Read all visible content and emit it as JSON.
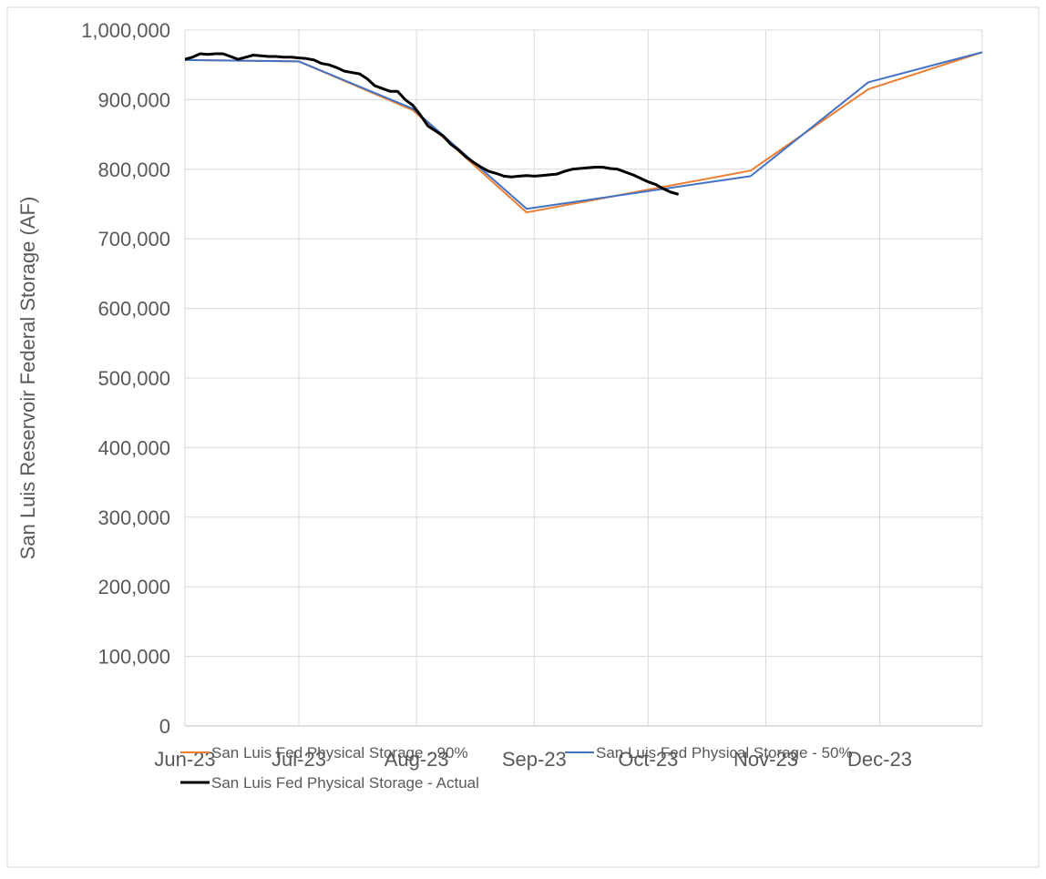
{
  "chart_data": {
    "type": "line",
    "y_label": "San Luis Reservoir Federal Storage (AF)",
    "xlim": [
      0,
      210
    ],
    "xticks": [
      {
        "value": 0,
        "label": "Jun-23"
      },
      {
        "value": 30,
        "label": "Jul-23"
      },
      {
        "value": 61,
        "label": "Aug-23"
      },
      {
        "value": 92,
        "label": "Sep-23"
      },
      {
        "value": 122,
        "label": "Oct-23"
      },
      {
        "value": 153,
        "label": "Nov-23"
      },
      {
        "value": 183,
        "label": "Dec-23"
      }
    ],
    "ylim": [
      0,
      1000000
    ],
    "yticks": [
      0,
      {
        "value": 100000,
        "label": "100,000"
      },
      {
        "value": 200000,
        "label": "200,000"
      },
      {
        "value": 300000,
        "label": "300,000"
      },
      {
        "value": 400000,
        "label": "400,000"
      },
      {
        "value": 500000,
        "label": "500,000"
      },
      {
        "value": 600000,
        "label": "600,000"
      },
      {
        "value": 700000,
        "label": "700,000"
      },
      {
        "value": 800000,
        "label": "800,000"
      },
      {
        "value": 900000,
        "label": "900,000"
      },
      {
        "value": 1000000,
        "label": "1,000,000"
      }
    ],
    "grid": true,
    "series": [
      {
        "name": "San Luis Fed Physical Storage - 90%",
        "color": "#ed7d31",
        "width": 2,
        "x": [
          0,
          30,
          60,
          90,
          149,
          180,
          210
        ],
        "values": [
          957000,
          955000,
          885000,
          738000,
          798000,
          915000,
          968000
        ]
      },
      {
        "name": "San Luis Fed Physical Storage - 50%",
        "color": "#4472c4",
        "width": 2,
        "x": [
          0,
          30,
          60,
          90,
          149,
          180,
          210
        ],
        "values": [
          957000,
          955000,
          887000,
          743000,
          790000,
          925000,
          968000
        ]
      },
      {
        "name": "San Luis Fed Physical Storage - Actual",
        "color": "#000000",
        "width": 3,
        "x": [
          0,
          2,
          4,
          6,
          8,
          10,
          12,
          14,
          16,
          18,
          20,
          22,
          24,
          26,
          28,
          30,
          32,
          34,
          36,
          38,
          40,
          42,
          44,
          46,
          48,
          50,
          52,
          54,
          56,
          58,
          60,
          62,
          64,
          66,
          68,
          70,
          72,
          74,
          76,
          78,
          80,
          82,
          84,
          86,
          88,
          90,
          92,
          94,
          96,
          98,
          100,
          102,
          104,
          106,
          108,
          110,
          112,
          114,
          116,
          118,
          120,
          122,
          124,
          126,
          128,
          130
        ],
        "values": [
          958000,
          961000,
          966000,
          965000,
          966000,
          966000,
          962000,
          958000,
          961000,
          964000,
          963000,
          962000,
          962000,
          961000,
          961000,
          960000,
          959000,
          957000,
          952000,
          950000,
          946000,
          941000,
          939000,
          937000,
          930000,
          920000,
          916000,
          912000,
          912000,
          900000,
          892000,
          878000,
          862000,
          855000,
          848000,
          836000,
          828000,
          818000,
          810000,
          803000,
          797000,
          794000,
          790000,
          789000,
          790000,
          791000,
          790000,
          791000,
          792000,
          793000,
          797000,
          800000,
          801000,
          802000,
          803000,
          803000,
          801000,
          800000,
          796000,
          792000,
          787000,
          782000,
          778000,
          772000,
          767000,
          764000
        ]
      }
    ]
  }
}
